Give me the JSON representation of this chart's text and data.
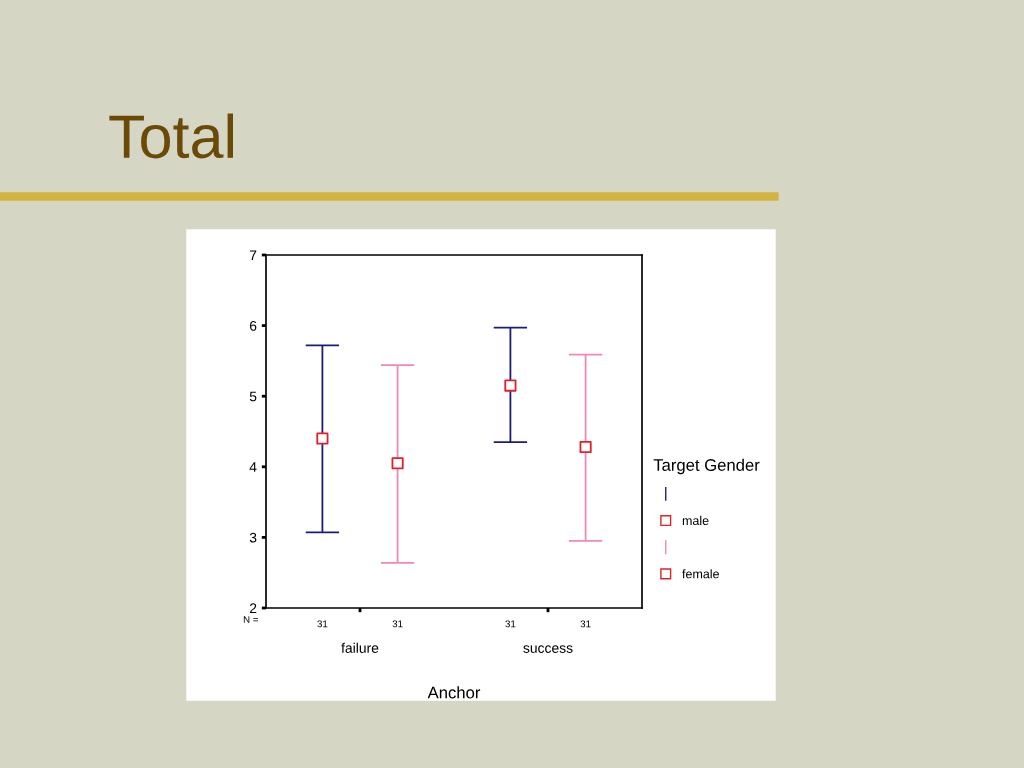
{
  "chart_data": {
    "type": "scatter",
    "title": "Total",
    "xlabel": "Anchor",
    "legend_title": "Target Gender",
    "categories": [
      "failure",
      "success"
    ],
    "series": [
      {
        "name": "male",
        "color": "#1c1c7c",
        "colors": [
          "#e0202a",
          "#e0202a"
        ],
        "values": [
          4.4,
          5.15
        ],
        "errors": [
          [
            3.07,
            5.72
          ],
          [
            4.35,
            5.97
          ]
        ]
      },
      {
        "name": "female",
        "color": "#f088b8",
        "colors": [
          "#e0202a",
          "#e0202a"
        ],
        "values": [
          4.05,
          4.28
        ],
        "errors": [
          [
            2.64,
            5.44
          ],
          [
            2.95,
            5.59
          ]
        ]
      }
    ],
    "ylim": [
      2,
      7
    ],
    "yticks": [
      2,
      3,
      4,
      5,
      6,
      7
    ],
    "grid": false,
    "legend": "right",
    "marker": "square",
    "annotations": [
      "N =",
      "31",
      "31",
      "31",
      "31"
    ]
  }
}
